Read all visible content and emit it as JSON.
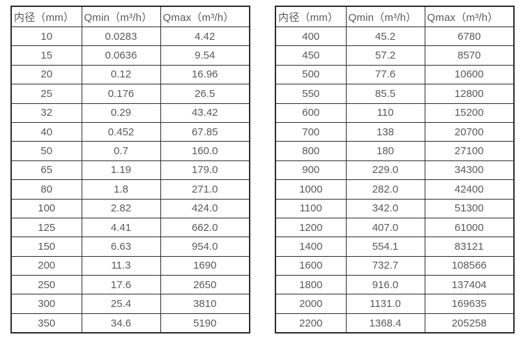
{
  "colors": {
    "background": "#ffffff",
    "border": "#2b2b2b",
    "text": "#595959"
  },
  "left_table": {
    "headers": [
      "内径（mm）",
      "Qmin（m³/h）",
      "Qmax（m³/h）"
    ],
    "rows": [
      [
        "10",
        "0.0283",
        "4.42"
      ],
      [
        "15",
        "0.0636",
        "9.54"
      ],
      [
        "20",
        "0.12",
        "16.96"
      ],
      [
        "25",
        "0.176",
        "26.5"
      ],
      [
        "32",
        "0.29",
        "43.42"
      ],
      [
        "40",
        "0.452",
        "67.85"
      ],
      [
        "50",
        "0.7",
        "160.0"
      ],
      [
        "65",
        "1.19",
        "179.0"
      ],
      [
        "80",
        "1.8",
        "271.0"
      ],
      [
        "100",
        "2.82",
        "424.0"
      ],
      [
        "125",
        "4.41",
        "662.0"
      ],
      [
        "150",
        "6.63",
        "954.0"
      ],
      [
        "200",
        "11.3",
        "1690"
      ],
      [
        "250",
        "17.6",
        "2650"
      ],
      [
        "300",
        "25.4",
        "3810"
      ],
      [
        "350",
        "34.6",
        "5190"
      ]
    ]
  },
  "right_table": {
    "headers": [
      "内径（mm）",
      "Qmin（m³/h）",
      "Qmax（m³/h）"
    ],
    "rows": [
      [
        "400",
        "45.2",
        "6780"
      ],
      [
        "450",
        "57.2",
        "8570"
      ],
      [
        "500",
        "77.6",
        "10600"
      ],
      [
        "550",
        "85.5",
        "12800"
      ],
      [
        "600",
        "110",
        "15200"
      ],
      [
        "700",
        "138",
        "20700"
      ],
      [
        "800",
        "180",
        "27100"
      ],
      [
        "900",
        "229.0",
        "34300"
      ],
      [
        "1000",
        "282.0",
        "42400"
      ],
      [
        "1100",
        "342.0",
        "51300"
      ],
      [
        "1200",
        "407.0",
        "61000"
      ],
      [
        "1400",
        "554.1",
        "83121"
      ],
      [
        "1600",
        "732.7",
        "108566"
      ],
      [
        "1800",
        "916.0",
        "137404"
      ],
      [
        "2000",
        "1131.0",
        "169635"
      ],
      [
        "2200",
        "1368.4",
        "205258"
      ]
    ]
  }
}
